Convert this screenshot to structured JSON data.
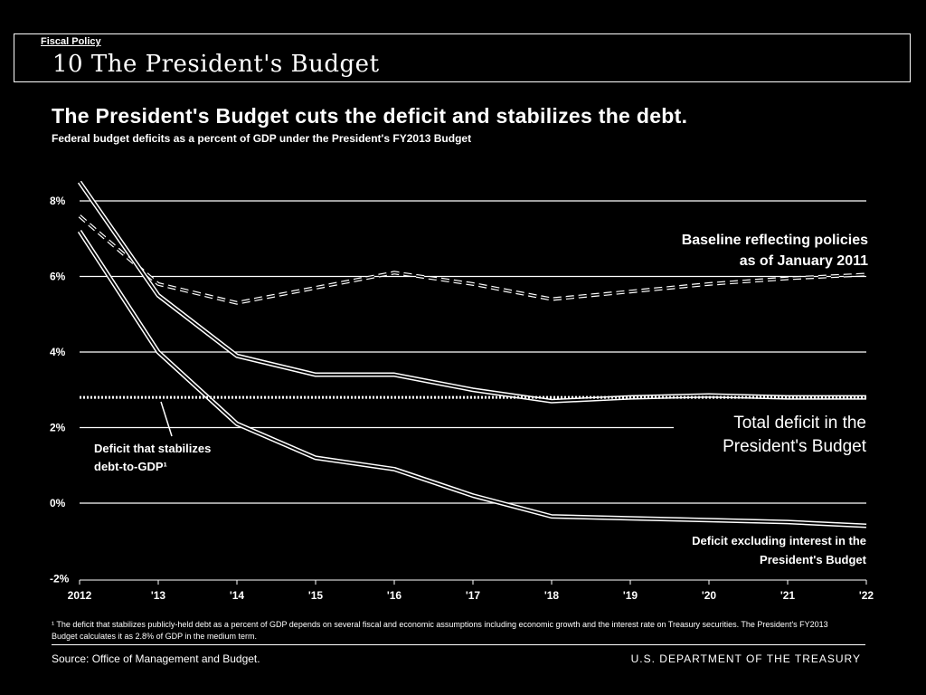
{
  "header": {
    "section": "Fiscal Policy",
    "number": "10",
    "title": "The President's Budget"
  },
  "chart_data": {
    "type": "line",
    "title": "The President's Budget cuts the deficit and stabilizes the debt.",
    "subtitle": "Federal budget deficits as a percent of GDP under the President's FY2013 Budget",
    "x": [
      2012,
      2013,
      2014,
      2015,
      2016,
      2017,
      2018,
      2019,
      2020,
      2021,
      2022
    ],
    "x_tick_labels": [
      "2012",
      "'13",
      "'14",
      "'15",
      "'16",
      "'17",
      "'18",
      "'19",
      "'20",
      "'21",
      "'22"
    ],
    "y_tick_labels": [
      "8%",
      "6%",
      "4%",
      "2%",
      "0%",
      "-2%"
    ],
    "ylim": [
      -2,
      8.5
    ],
    "y_ticks": [
      -2,
      0,
      2,
      4,
      6,
      8
    ],
    "grid": true,
    "series": [
      {
        "name": "Baseline reflecting policies as of January 2011",
        "style": "dashed",
        "values": [
          7.6,
          5.8,
          5.3,
          5.7,
          6.1,
          5.8,
          5.4,
          5.6,
          5.8,
          5.95,
          6.05
        ]
      },
      {
        "name": "Total deficit in the President's Budget",
        "style": "double",
        "values": [
          8.5,
          5.5,
          3.9,
          3.4,
          3.4,
          3.0,
          2.7,
          2.8,
          2.85,
          2.8,
          2.8
        ]
      },
      {
        "name": "Deficit excluding interest in the President's Budget",
        "style": "double",
        "values": [
          7.2,
          4.0,
          2.1,
          1.2,
          0.9,
          0.2,
          -0.35,
          -0.4,
          -0.45,
          -0.5,
          -0.6
        ]
      },
      {
        "name": "Deficit that stabilizes debt-to-GDP¹",
        "style": "dotted",
        "values": [
          2.8,
          2.8,
          2.8,
          2.8,
          2.8,
          2.8,
          2.8,
          2.8,
          2.8,
          2.8,
          2.8
        ]
      }
    ],
    "annotations": {
      "baseline_line1": "Baseline reflecting policies",
      "baseline_line2": "as of January 2011",
      "total_line1": "Total deficit in the",
      "total_line2": "President's Budget",
      "stabilize_line1": "Deficit that stabilizes",
      "stabilize_line2": "debt-to-GDP¹",
      "primary_line1": "Deficit excluding interest in the",
      "primary_line2": "President's Budget"
    }
  },
  "footnote": "¹ The deficit that stabilizes publicly-held debt as a percent of GDP depends on several fiscal and economic assumptions including economic growth and the interest rate on Treasury securities. The President's FY2013 Budget calculates it as 2.8% of GDP in the medium term.",
  "footer": {
    "source": "Source: Office of Management and Budget.",
    "agency": "U.S. DEPARTMENT OF THE TREASURY"
  }
}
